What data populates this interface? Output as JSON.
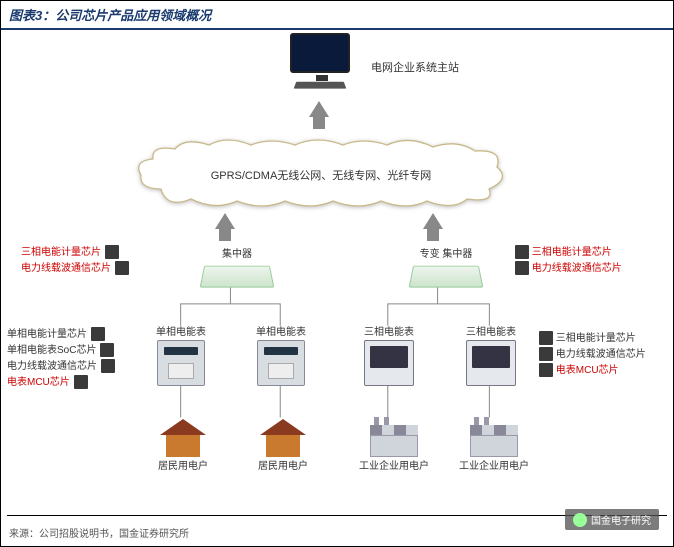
{
  "title": "图表3：公司芯片产品应用领域概况",
  "source": "来源：公司招股说明书，国金证券研究所",
  "watermark": "国金电子研究",
  "top_system_label": "电网企业系统主站",
  "cloud_text": "GPRS/CDMA无线公网、无线专网、光纤专网",
  "left": {
    "concentrator_label": "集中器",
    "chips_left_of_concentrator": [
      "三相电能计量芯片",
      "电力线载波通信芯片"
    ],
    "meter_label": "单相电能表",
    "bottom_label": "居民用电户",
    "chips_left_of_meter": [
      {
        "text": "单相电能计量芯片",
        "red": false
      },
      {
        "text": "单相电能表SoC芯片",
        "red": false
      },
      {
        "text": "电力线载波通信芯片",
        "red": false
      },
      {
        "text": "电表MCU芯片",
        "red": true
      }
    ]
  },
  "right": {
    "concentrator_label": "专变 集中器",
    "chips_right_of_concentrator": [
      "三相电能计量芯片",
      "电力线载波通信芯片"
    ],
    "meter_label": "三相电能表",
    "bottom_label": "工业企业用电户",
    "chips_right_of_meter": [
      {
        "text": "三相电能计量芯片",
        "red": false
      },
      {
        "text": "电力线载波通信芯片",
        "red": false
      },
      {
        "text": "电表MCU芯片",
        "red": true
      }
    ]
  },
  "colors": {
    "title": "#1a3a6e",
    "border": "#1a3a6e",
    "arrow": "#888",
    "cloud": "#fefefe",
    "cloud_stroke": "#c9b98a"
  }
}
